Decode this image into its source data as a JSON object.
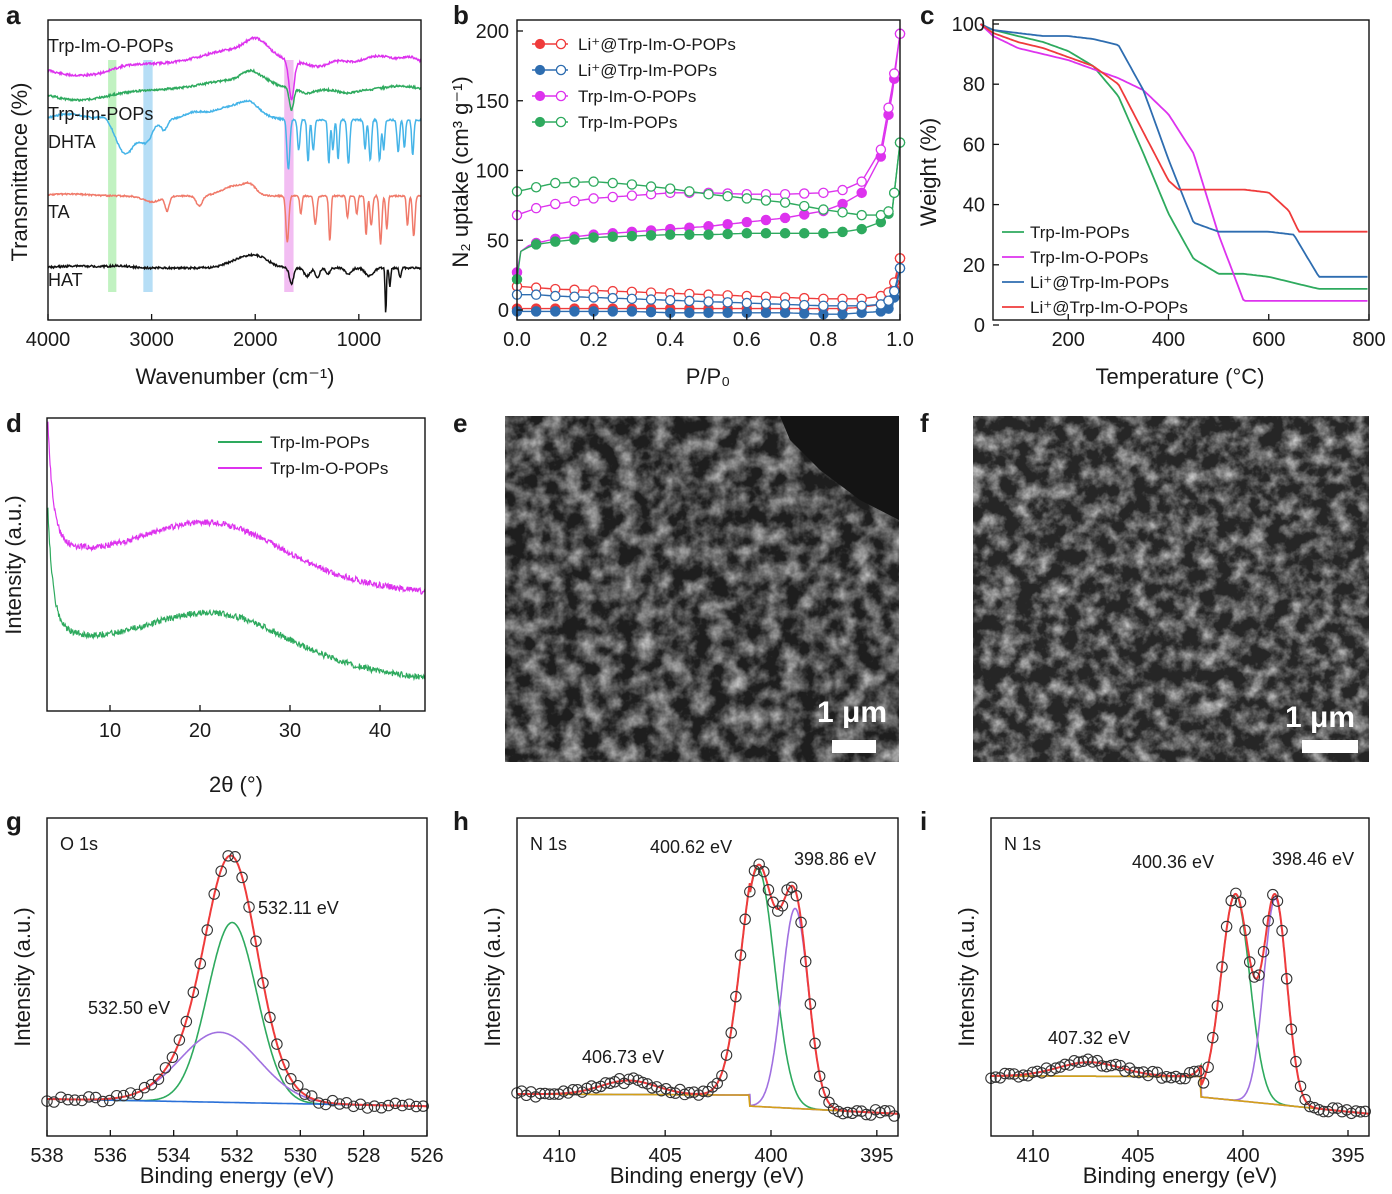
{
  "panel_letters": [
    "a",
    "b",
    "c",
    "d",
    "e",
    "f",
    "g",
    "h",
    "i"
  ],
  "colors": {
    "red": "#ef3b3b",
    "blue": "#2e6db0",
    "magenta": "#dd33ee",
    "green": "#2eaa5e",
    "black": "#111111",
    "salmon": "#f07a6a",
    "skyblue": "#45b4e8",
    "violet": "#a070e0",
    "gold": "#d4a017",
    "lineblue": "#2a70d8"
  },
  "chart_data": [
    {
      "id": "a",
      "type": "line",
      "xlabel": "Wavenumber (cm⁻¹)",
      "ylabel": "Transmittance (%)",
      "xlim": [
        4000,
        400
      ],
      "xticks": [
        4000,
        3000,
        2000,
        1000
      ],
      "series": [
        {
          "name": "Trp-Im-O-POPs",
          "label": "Trp-Im-O-POPs",
          "color": "#dd33ee"
        },
        {
          "name": "Trp-Im-POPs",
          "label": "Trp-Im-POPs",
          "color": "#2eaa5e"
        },
        {
          "name": "DHTA",
          "label": "DHTA",
          "color": "#45b4e8"
        },
        {
          "name": "TA",
          "label": "TA",
          "color": "#f07a6a"
        },
        {
          "name": "HAT",
          "label": "HAT",
          "color": "#111111"
        }
      ],
      "highlight_bands": [
        [
          3420,
          3340
        ],
        [
          3080,
          2990
        ],
        [
          1720,
          1630
        ]
      ]
    },
    {
      "id": "b",
      "type": "line",
      "xlabel": "P/P₀",
      "ylabel": "N₂ uptake (cm³ g⁻¹)",
      "xlim": [
        0,
        1.0
      ],
      "ylim": [
        -5,
        200
      ],
      "xticks": [
        "0.0",
        "0.2",
        "0.4",
        "0.6",
        "0.8",
        "1.0"
      ],
      "yticks": [
        0,
        50,
        100,
        150,
        200
      ],
      "legend": [
        "Li⁺@Trp-Im-O-POPs",
        "Li⁺@Trp-Im-POPs",
        "Trp-Im-O-POPs",
        "Trp-Im-POPs"
      ],
      "series": [
        {
          "name": "Li+@Trp-Im-O-POPs adsorption",
          "color": "#ef3b3b",
          "x": [
            0,
            0.05,
            0.1,
            0.2,
            0.3,
            0.4,
            0.5,
            0.6,
            0.7,
            0.8,
            0.85,
            0.9,
            0.95,
            0.98,
            1.0
          ],
          "y": [
            1,
            1,
            1,
            1,
            1,
            1,
            1,
            1,
            1,
            1,
            1,
            2,
            4,
            8,
            37
          ]
        },
        {
          "name": "Li+@Trp-Im-O-POPs desorption",
          "color": "#ef3b3b",
          "x": [
            0,
            0.05,
            0.1,
            0.2,
            0.3,
            0.4,
            0.5,
            0.6,
            0.7,
            0.8,
            0.85,
            0.9,
            0.95,
            0.98,
            1.0
          ],
          "y": [
            17,
            16,
            15,
            14,
            13,
            12,
            11,
            10,
            9,
            8,
            8,
            8,
            10,
            14,
            37
          ]
        },
        {
          "name": "Li+@Trp-Im-POPs adsorption",
          "color": "#2e6db0",
          "x": [
            0,
            0.05,
            0.1,
            0.2,
            0.3,
            0.4,
            0.5,
            0.6,
            0.7,
            0.8,
            0.85,
            0.9,
            0.95,
            0.98,
            1.0
          ],
          "y": [
            -1,
            -1,
            -1,
            -1,
            -1,
            -2,
            -2,
            -2,
            -2,
            -3,
            -3,
            -2,
            -1,
            2,
            30
          ]
        },
        {
          "name": "Li+@Trp-Im-POPs desorption",
          "color": "#2e6db0",
          "x": [
            0,
            0.05,
            0.1,
            0.2,
            0.3,
            0.4,
            0.5,
            0.6,
            0.7,
            0.8,
            0.85,
            0.9,
            0.95,
            0.98,
            1.0
          ],
          "y": [
            11,
            11,
            10,
            9,
            8,
            7,
            6,
            5,
            4,
            3,
            3,
            3,
            4,
            8,
            30
          ]
        },
        {
          "name": "Trp-Im-O-POPs adsorption",
          "color": "#dd33ee",
          "x": [
            0,
            0.01,
            0.03,
            0.05,
            0.1,
            0.2,
            0.3,
            0.4,
            0.5,
            0.6,
            0.7,
            0.8,
            0.85,
            0.9,
            0.95,
            0.98,
            1.0
          ],
          "y": [
            27,
            42,
            46,
            48,
            51,
            54,
            56,
            58,
            60,
            63,
            66,
            71,
            76,
            84,
            110,
            155,
            198
          ]
        },
        {
          "name": "Trp-Im-O-POPs desorption",
          "color": "#dd33ee",
          "x": [
            0,
            0.05,
            0.1,
            0.2,
            0.3,
            0.4,
            0.5,
            0.6,
            0.7,
            0.8,
            0.85,
            0.9,
            0.95,
            0.98,
            1.0
          ],
          "y": [
            68,
            73,
            76,
            80,
            82,
            84,
            84,
            83,
            83,
            84,
            86,
            92,
            115,
            160,
            198
          ]
        },
        {
          "name": "Trp-Im-POPs adsorption",
          "color": "#2eaa5e",
          "x": [
            0,
            0.01,
            0.03,
            0.05,
            0.1,
            0.2,
            0.3,
            0.4,
            0.5,
            0.6,
            0.7,
            0.8,
            0.85,
            0.9,
            0.95,
            0.98,
            1.0
          ],
          "y": [
            22,
            42,
            45,
            47,
            49,
            52,
            53,
            54,
            54,
            55,
            55,
            55,
            56,
            58,
            63,
            72,
            120
          ]
        },
        {
          "name": "Trp-Im-POPs desorption",
          "color": "#2eaa5e",
          "x": [
            0,
            0.05,
            0.1,
            0.2,
            0.3,
            0.4,
            0.5,
            0.6,
            0.7,
            0.8,
            0.85,
            0.9,
            0.95,
            0.98,
            1.0
          ],
          "y": [
            85,
            88,
            91,
            92,
            90,
            87,
            83,
            80,
            77,
            72,
            70,
            68,
            68,
            72,
            120
          ]
        }
      ]
    },
    {
      "id": "c",
      "type": "line",
      "xlabel": "Temperature (°C)",
      "ylabel": "Weight (%)",
      "xlim": [
        25,
        800
      ],
      "ylim": [
        0,
        100
      ],
      "xticks": [
        200,
        400,
        600,
        800
      ],
      "yticks": [
        0,
        20,
        40,
        60,
        80,
        100
      ],
      "legend": [
        "Trp-Im-POPs",
        "Trp-Im-O-POPs",
        "Li⁺@Trp-Im-POPs",
        "Li⁺@Trp-Im-O-POPs"
      ],
      "series": [
        {
          "name": "Trp-Im-POPs",
          "color": "#2eaa5e",
          "x": [
            25,
            50,
            100,
            150,
            200,
            250,
            300,
            350,
            400,
            450,
            500,
            550,
            600,
            650,
            700,
            800
          ],
          "y": [
            100,
            98,
            96,
            94,
            91,
            86,
            76,
            57,
            37,
            22,
            17,
            17,
            16,
            14,
            12,
            12
          ]
        },
        {
          "name": "Trp-Im-O-POPs",
          "color": "#dd33ee",
          "x": [
            25,
            50,
            100,
            150,
            200,
            250,
            300,
            350,
            400,
            450,
            500,
            550,
            600,
            650,
            700,
            800
          ],
          "y": [
            100,
            96,
            92,
            90,
            88,
            85,
            82,
            78,
            70,
            57,
            30,
            8,
            8,
            8,
            8,
            8
          ]
        },
        {
          "name": "Li+@Trp-Im-POPs",
          "color": "#2e6db0",
          "x": [
            25,
            50,
            100,
            150,
            200,
            250,
            300,
            350,
            400,
            450,
            500,
            550,
            600,
            650,
            700,
            800
          ],
          "y": [
            100,
            98,
            97,
            96,
            96,
            95,
            93,
            78,
            55,
            34,
            31,
            31,
            31,
            30,
            16,
            16
          ]
        },
        {
          "name": "Li+@Trp-Im-O-POPs",
          "color": "#ef3b3b",
          "x": [
            25,
            50,
            100,
            150,
            200,
            250,
            300,
            350,
            400,
            420,
            450,
            500,
            550,
            600,
            640,
            660,
            700,
            800
          ],
          "y": [
            100,
            97,
            94,
            92,
            89,
            86,
            80,
            64,
            48,
            45,
            45,
            45,
            45,
            44,
            38,
            31,
            31,
            31
          ]
        }
      ]
    },
    {
      "id": "d",
      "type": "line",
      "xlabel": "2θ (°)",
      "ylabel": "Intensity (a.u.)",
      "xlim": [
        3,
        45
      ],
      "xticks": [
        10,
        20,
        30,
        40
      ],
      "legend": [
        "Trp-Im-POPs",
        "Trp-Im-O-POPs"
      ],
      "series": [
        {
          "name": "Trp-Im-POPs",
          "color": "#2eaa5e",
          "peak_2theta": 22
        },
        {
          "name": "Trp-Im-O-POPs",
          "color": "#dd33ee",
          "peak_2theta": 21.5
        }
      ]
    },
    {
      "id": "g",
      "type": "line",
      "title": "O 1s",
      "xlabel": "Binding energy (eV)",
      "ylabel": "Intensity (a.u.)",
      "xlim": [
        538,
        526
      ],
      "xticks": [
        538,
        536,
        534,
        532,
        530,
        528,
        526
      ],
      "annotations": [
        "532.11 eV",
        "532.50 eV"
      ],
      "peaks": [
        {
          "center": 532.11,
          "label": "532.11 eV"
        },
        {
          "center": 532.5,
          "label": "532.50 eV"
        }
      ]
    },
    {
      "id": "h",
      "type": "line",
      "title": "N 1s",
      "xlabel": "Binding energy (eV)",
      "ylabel": "Intensity (a.u.)",
      "xlim": [
        412,
        394
      ],
      "xticks": [
        410,
        405,
        400,
        395
      ],
      "annotations": [
        "400.62 eV",
        "398.86 eV",
        "406.73 eV"
      ],
      "peaks": [
        {
          "center": 400.62,
          "label": "400.62 eV"
        },
        {
          "center": 398.86,
          "label": "398.86 eV"
        },
        {
          "center": 406.73,
          "label": "406.73 eV"
        }
      ]
    },
    {
      "id": "i",
      "type": "line",
      "title": "N 1s",
      "xlabel": "Binding energy (eV)",
      "ylabel": "Intensity (a.u.)",
      "xlim": [
        412,
        394
      ],
      "xticks": [
        410,
        405,
        400,
        395
      ],
      "annotations": [
        "400.36 eV",
        "398.46 eV",
        "407.32 eV"
      ],
      "peaks": [
        {
          "center": 400.36,
          "label": "400.36 eV"
        },
        {
          "center": 398.46,
          "label": "398.46 eV"
        },
        {
          "center": 407.32,
          "label": "407.32 eV"
        }
      ]
    }
  ],
  "sem": [
    {
      "id": "e",
      "scale_bar": "1 μm"
    },
    {
      "id": "f",
      "scale_bar": "1 μm"
    }
  ]
}
